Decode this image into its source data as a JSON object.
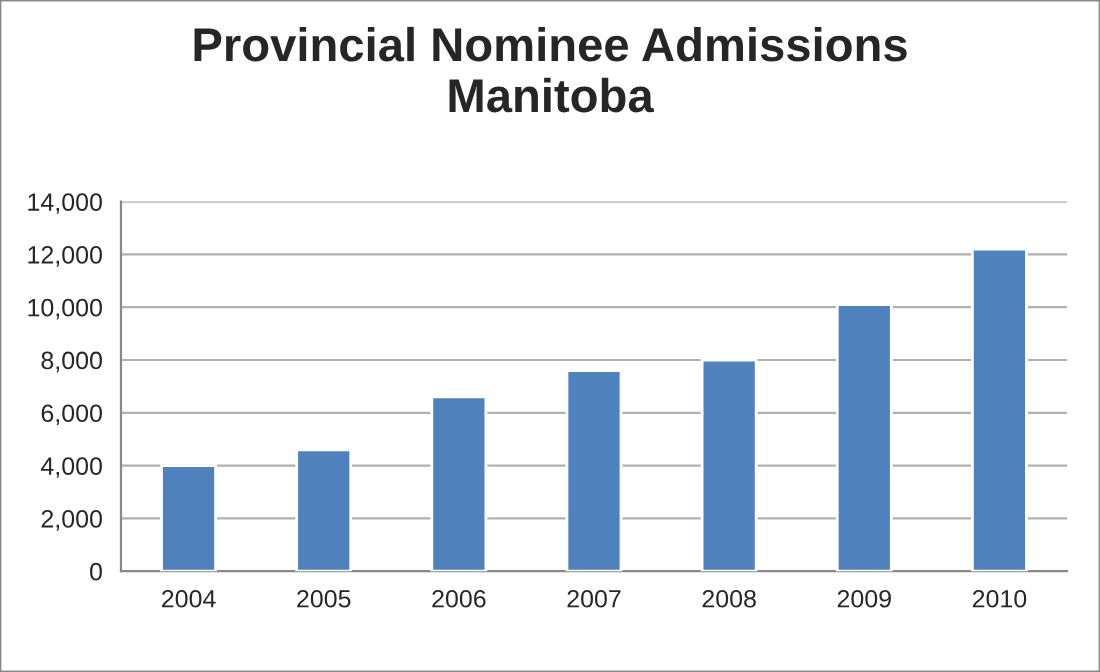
{
  "chart_data": {
    "type": "bar",
    "title": "Provincial Nominee Admissions\nManitoba",
    "categories": [
      "2004",
      "2005",
      "2006",
      "2007",
      "2008",
      "2009",
      "2010"
    ],
    "values": [
      4000,
      4600,
      6600,
      7600,
      8000,
      10100,
      12200
    ],
    "color": "#4f81bd",
    "ylim": [
      0,
      14000
    ],
    "yticks": [
      {
        "value": 0,
        "label": "0"
      },
      {
        "value": 2000,
        "label": "2,000"
      },
      {
        "value": 4000,
        "label": "4,000"
      },
      {
        "value": 6000,
        "label": "6,000"
      },
      {
        "value": 8000,
        "label": "8,000"
      },
      {
        "value": 10000,
        "label": "10,000"
      },
      {
        "value": 12000,
        "label": "12,000"
      },
      {
        "value": 14000,
        "label": "14,000"
      }
    ],
    "grid": "y"
  }
}
